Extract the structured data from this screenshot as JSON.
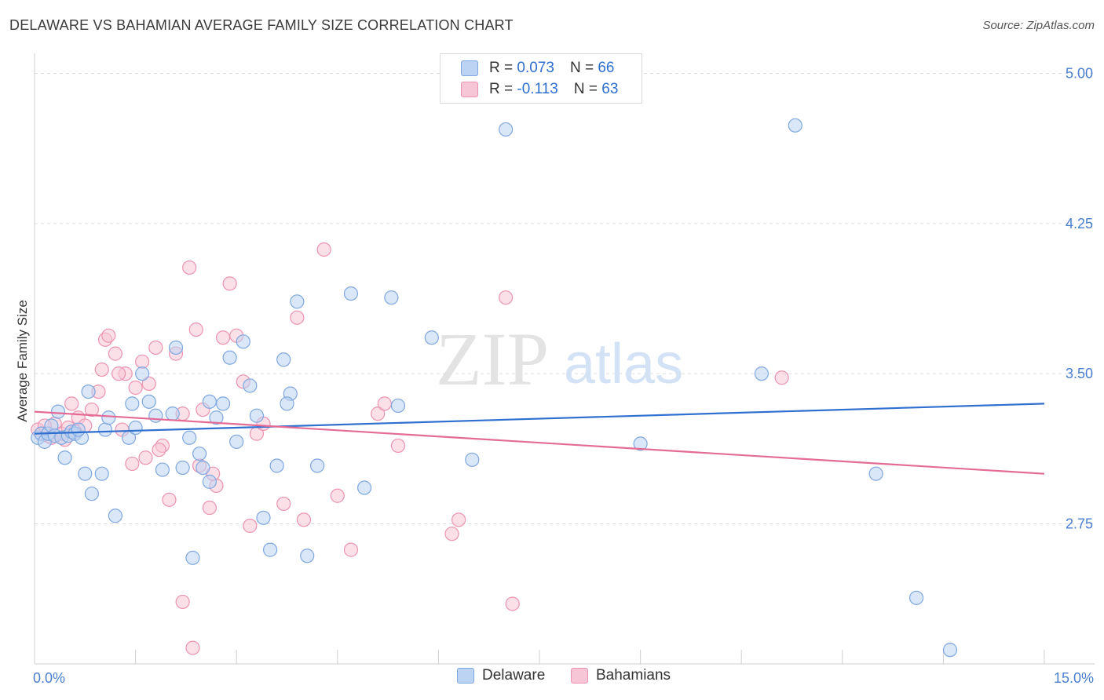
{
  "header": {
    "title": "DELAWARE VS BAHAMIAN AVERAGE FAMILY SIZE CORRELATION CHART",
    "source": "Source: ZipAtlas.com"
  },
  "legend_top": {
    "rows": [
      {
        "r_label": "R =",
        "r_value": "0.073",
        "n_label": "N =",
        "n_value": "66"
      },
      {
        "r_label": "R =",
        "r_value": "-0.113",
        "n_label": "N =",
        "n_value": "63"
      }
    ]
  },
  "legend_bottom": {
    "items": [
      {
        "label": "Delaware"
      },
      {
        "label": "Bahamians"
      }
    ]
  },
  "colors": {
    "delaware_fill": "#bcd3f3",
    "delaware_stroke": "#7fa7e0",
    "delaware_line": "#2f6fd0",
    "bahamian_fill": "#f7c6d6",
    "bahamian_stroke": "#ec93b1",
    "bahamian_line": "#e46b96",
    "axis_text": "#4a7fd0"
  },
  "watermark": {
    "zip": "ZIP",
    "atlas": "atlas"
  },
  "chart_data": {
    "type": "scatter",
    "title": "DELAWARE VS BAHAMIAN AVERAGE FAMILY SIZE CORRELATION CHART",
    "xlabel": "",
    "ylabel": "Average Family Size",
    "xlim": [
      0,
      15
    ],
    "ylim": [
      2.05,
      5.1
    ],
    "x_tick_labels": [
      "0.0%",
      "15.0%"
    ],
    "y_ticks": [
      2.75,
      3.5,
      4.25,
      5.0
    ],
    "y_tick_labels": [
      "2.75",
      "3.50",
      "4.25",
      "5.00"
    ],
    "grid": true,
    "legend_position": "top-center",
    "series": [
      {
        "name": "Delaware",
        "trend": [
          [
            0,
            3.2
          ],
          [
            15,
            3.35
          ]
        ],
        "points": [
          [
            0.05,
            3.18
          ],
          [
            0.1,
            3.2
          ],
          [
            0.15,
            3.16
          ],
          [
            0.2,
            3.2
          ],
          [
            0.25,
            3.24
          ],
          [
            0.3,
            3.19
          ],
          [
            0.35,
            3.31
          ],
          [
            0.4,
            3.18
          ],
          [
            0.45,
            3.08
          ],
          [
            0.5,
            3.19
          ],
          [
            0.55,
            3.21
          ],
          [
            0.6,
            3.2
          ],
          [
            0.7,
            3.18
          ],
          [
            0.75,
            3.0
          ],
          [
            0.8,
            3.41
          ],
          [
            0.85,
            2.9
          ],
          [
            1.0,
            3.0
          ],
          [
            1.05,
            3.22
          ],
          [
            1.1,
            3.28
          ],
          [
            1.2,
            2.79
          ],
          [
            1.4,
            3.18
          ],
          [
            1.5,
            3.23
          ],
          [
            1.6,
            3.5
          ],
          [
            1.7,
            3.36
          ],
          [
            1.8,
            3.29
          ],
          [
            1.9,
            3.02
          ],
          [
            2.1,
            3.63
          ],
          [
            2.2,
            3.03
          ],
          [
            2.3,
            3.18
          ],
          [
            2.35,
            2.58
          ],
          [
            2.5,
            3.03
          ],
          [
            2.6,
            2.96
          ],
          [
            2.7,
            3.28
          ],
          [
            2.8,
            3.35
          ],
          [
            3.1,
            3.66
          ],
          [
            3.2,
            3.44
          ],
          [
            3.3,
            3.29
          ],
          [
            3.4,
            2.78
          ],
          [
            3.5,
            2.62
          ],
          [
            3.6,
            3.04
          ],
          [
            3.7,
            3.57
          ],
          [
            3.8,
            3.4
          ],
          [
            3.9,
            3.86
          ],
          [
            4.05,
            2.59
          ],
          [
            4.2,
            3.04
          ],
          [
            4.7,
            3.9
          ],
          [
            4.9,
            2.93
          ],
          [
            5.3,
            3.88
          ],
          [
            5.4,
            3.34
          ],
          [
            5.9,
            3.68
          ],
          [
            6.5,
            3.07
          ],
          [
            7.0,
            4.72
          ],
          [
            9.0,
            3.15
          ],
          [
            10.8,
            3.5
          ],
          [
            11.3,
            4.74
          ],
          [
            12.5,
            3.0
          ],
          [
            13.1,
            2.38
          ],
          [
            13.6,
            2.12
          ],
          [
            0.65,
            3.22
          ],
          [
            1.45,
            3.35
          ],
          [
            2.05,
            3.3
          ],
          [
            2.45,
            3.1
          ],
          [
            2.6,
            3.36
          ],
          [
            3.0,
            3.16
          ],
          [
            3.75,
            3.35
          ],
          [
            2.9,
            3.58
          ]
        ]
      },
      {
        "name": "Bahamians",
        "trend": [
          [
            0,
            3.31
          ],
          [
            15,
            3.0
          ]
        ],
        "points": [
          [
            0.05,
            3.22
          ],
          [
            0.1,
            3.2
          ],
          [
            0.2,
            3.19
          ],
          [
            0.3,
            3.25
          ],
          [
            0.4,
            3.2
          ],
          [
            0.5,
            3.23
          ],
          [
            0.55,
            3.35
          ],
          [
            0.65,
            3.28
          ],
          [
            0.75,
            3.24
          ],
          [
            0.85,
            3.32
          ],
          [
            0.95,
            3.41
          ],
          [
            1.0,
            3.52
          ],
          [
            1.05,
            3.67
          ],
          [
            1.1,
            3.69
          ],
          [
            1.2,
            3.6
          ],
          [
            1.3,
            3.22
          ],
          [
            1.35,
            3.5
          ],
          [
            1.45,
            3.05
          ],
          [
            1.5,
            3.43
          ],
          [
            1.6,
            3.56
          ],
          [
            1.7,
            3.45
          ],
          [
            1.8,
            3.63
          ],
          [
            1.9,
            3.14
          ],
          [
            2.0,
            2.87
          ],
          [
            2.1,
            3.6
          ],
          [
            2.2,
            3.3
          ],
          [
            2.3,
            4.03
          ],
          [
            2.4,
            3.72
          ],
          [
            2.5,
            3.32
          ],
          [
            2.6,
            2.83
          ],
          [
            2.7,
            2.94
          ],
          [
            2.8,
            3.68
          ],
          [
            2.9,
            3.95
          ],
          [
            3.0,
            3.69
          ],
          [
            3.1,
            3.46
          ],
          [
            3.2,
            2.74
          ],
          [
            3.3,
            3.2
          ],
          [
            3.4,
            3.25
          ],
          [
            3.7,
            2.85
          ],
          [
            3.9,
            3.78
          ],
          [
            4.0,
            2.77
          ],
          [
            4.3,
            4.12
          ],
          [
            4.5,
            2.89
          ],
          [
            4.7,
            2.62
          ],
          [
            5.1,
            3.3
          ],
          [
            5.2,
            3.35
          ],
          [
            5.4,
            3.14
          ],
          [
            6.2,
            2.7
          ],
          [
            6.3,
            2.77
          ],
          [
            7.0,
            3.88
          ],
          [
            7.1,
            2.35
          ],
          [
            11.1,
            3.48
          ],
          [
            2.2,
            2.36
          ],
          [
            2.35,
            2.13
          ],
          [
            0.15,
            3.24
          ],
          [
            0.25,
            3.18
          ],
          [
            0.6,
            3.21
          ],
          [
            1.25,
            3.5
          ],
          [
            1.65,
            3.08
          ],
          [
            1.85,
            3.12
          ],
          [
            2.45,
            3.04
          ],
          [
            2.65,
            3.0
          ],
          [
            0.45,
            3.17
          ]
        ]
      }
    ]
  }
}
